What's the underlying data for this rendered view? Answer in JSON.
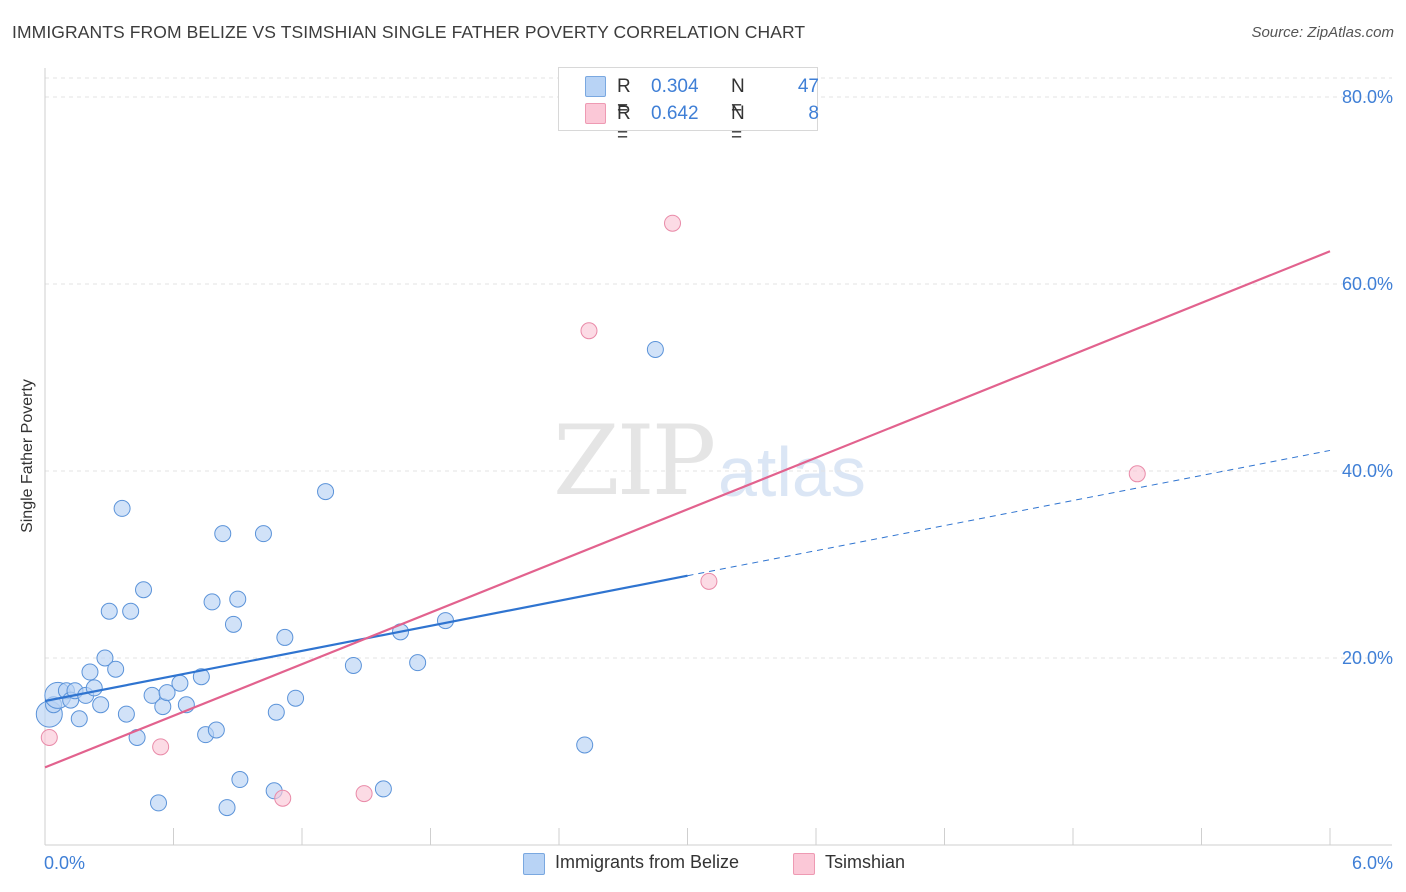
{
  "title": "IMMIGRANTS FROM BELIZE VS TSIMSHIAN SINGLE FATHER POVERTY CORRELATION CHART",
  "source": "Source: ZipAtlas.com",
  "watermark": {
    "zip": "ZIP",
    "atlas": "atlas"
  },
  "legend": {
    "rows": [
      {
        "r_label": "R =",
        "r_value": "0.304",
        "n_label": "N =",
        "n_value": "47",
        "color": "#b8d3f5",
        "border": "#7aa8e0"
      },
      {
        "r_label": "R =",
        "r_value": "0.642",
        "n_label": "N =",
        "n_value": "8",
        "color": "#fbc8d7",
        "border": "#ee9ab3"
      }
    ]
  },
  "bottom_legend": [
    {
      "label": "Immigrants from Belize",
      "color": "#b8d3f5",
      "border": "#7aa8e0"
    },
    {
      "label": "Tsimshian",
      "color": "#fbc8d7",
      "border": "#ee9ab3"
    }
  ],
  "chart_data": {
    "type": "scatter",
    "title": "IMMIGRANTS FROM BELIZE VS TSIMSHIAN SINGLE FATHER POVERTY CORRELATION CHART",
    "xlabel": "",
    "ylabel": "Single Father Poverty",
    "xlim": [
      0,
      6
    ],
    "ylim": [
      0,
      80
    ],
    "x_tick_labels": [
      "0.0%",
      "6.0%"
    ],
    "y_tick_values": [
      20,
      40,
      60,
      80
    ],
    "y_tick_labels": [
      "20.0%",
      "40.0%",
      "60.0%",
      "80.0%"
    ],
    "grid": true,
    "series": [
      {
        "name": "Immigrants from Belize",
        "color": "#b8d3f5",
        "stroke": "#5b93d9",
        "trend_color": "#2f74d0",
        "points": [
          {
            "x": 0.02,
            "y": 14.0,
            "big": true
          },
          {
            "x": 0.04,
            "y": 15.0
          },
          {
            "x": 0.06,
            "y": 16.0,
            "big": true
          },
          {
            "x": 0.1,
            "y": 16.5
          },
          {
            "x": 0.12,
            "y": 15.5
          },
          {
            "x": 0.14,
            "y": 16.5
          },
          {
            "x": 0.16,
            "y": 13.5
          },
          {
            "x": 0.19,
            "y": 16.0
          },
          {
            "x": 0.21,
            "y": 18.5
          },
          {
            "x": 0.23,
            "y": 16.8
          },
          {
            "x": 0.26,
            "y": 15.0
          },
          {
            "x": 0.28,
            "y": 20.0
          },
          {
            "x": 0.3,
            "y": 25.0
          },
          {
            "x": 0.33,
            "y": 18.8
          },
          {
            "x": 0.36,
            "y": 36.0
          },
          {
            "x": 0.38,
            "y": 14.0
          },
          {
            "x": 0.4,
            "y": 25.0
          },
          {
            "x": 0.43,
            "y": 11.5
          },
          {
            "x": 0.46,
            "y": 27.3
          },
          {
            "x": 0.5,
            "y": 16.0
          },
          {
            "x": 0.53,
            "y": 4.5
          },
          {
            "x": 0.55,
            "y": 14.8
          },
          {
            "x": 0.57,
            "y": 16.3
          },
          {
            "x": 0.63,
            "y": 17.3
          },
          {
            "x": 0.66,
            "y": 15.0
          },
          {
            "x": 0.73,
            "y": 18.0
          },
          {
            "x": 0.75,
            "y": 11.8
          },
          {
            "x": 0.78,
            "y": 26.0
          },
          {
            "x": 0.8,
            "y": 12.3
          },
          {
            "x": 0.83,
            "y": 33.3
          },
          {
            "x": 0.85,
            "y": 4.0
          },
          {
            "x": 0.88,
            "y": 23.6
          },
          {
            "x": 0.9,
            "y": 26.3
          },
          {
            "x": 0.91,
            "y": 7.0
          },
          {
            "x": 1.02,
            "y": 33.3
          },
          {
            "x": 1.07,
            "y": 5.8
          },
          {
            "x": 1.08,
            "y": 14.2
          },
          {
            "x": 1.12,
            "y": 22.2
          },
          {
            "x": 1.17,
            "y": 15.7
          },
          {
            "x": 1.31,
            "y": 37.8
          },
          {
            "x": 1.44,
            "y": 19.2
          },
          {
            "x": 1.58,
            "y": 6.0
          },
          {
            "x": 1.66,
            "y": 22.8
          },
          {
            "x": 1.74,
            "y": 19.5
          },
          {
            "x": 1.87,
            "y": 24.0
          },
          {
            "x": 2.52,
            "y": 10.7
          },
          {
            "x": 2.85,
            "y": 53.0
          }
        ],
        "trend": {
          "x0": 0.0,
          "y0": 15.4,
          "x1": 3.0,
          "y1": 28.8
        },
        "trend_dashed": {
          "x0": 3.0,
          "y0": 28.8,
          "x1": 6.0,
          "y1": 42.2
        }
      },
      {
        "name": "Tsimshian",
        "color": "#fbc8d7",
        "stroke": "#e98aa8",
        "trend_color": "#e2628e",
        "points": [
          {
            "x": 0.02,
            "y": 11.5
          },
          {
            "x": 0.54,
            "y": 10.5
          },
          {
            "x": 1.11,
            "y": 5.0
          },
          {
            "x": 1.49,
            "y": 5.5
          },
          {
            "x": 2.54,
            "y": 55.0
          },
          {
            "x": 2.93,
            "y": 66.5
          },
          {
            "x": 3.1,
            "y": 28.2
          },
          {
            "x": 5.1,
            "y": 39.7
          }
        ],
        "trend": {
          "x0": 0.0,
          "y0": 8.3,
          "x1": 6.0,
          "y1": 63.5
        }
      }
    ]
  }
}
